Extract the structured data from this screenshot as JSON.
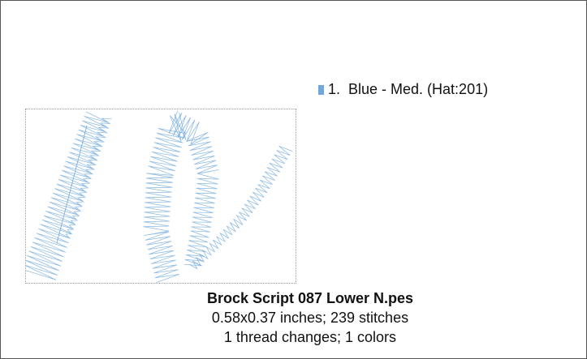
{
  "legend": [
    {
      "label": "1.  Blue - Med. (Hat:201)",
      "color": "#6fa8dc"
    }
  ],
  "design": {
    "title": "Brock Script 087 Lower N.pes",
    "size_line": "0.58x0.37 inches; 239 stitches",
    "thread_line": "1 thread changes; 1 colors"
  }
}
